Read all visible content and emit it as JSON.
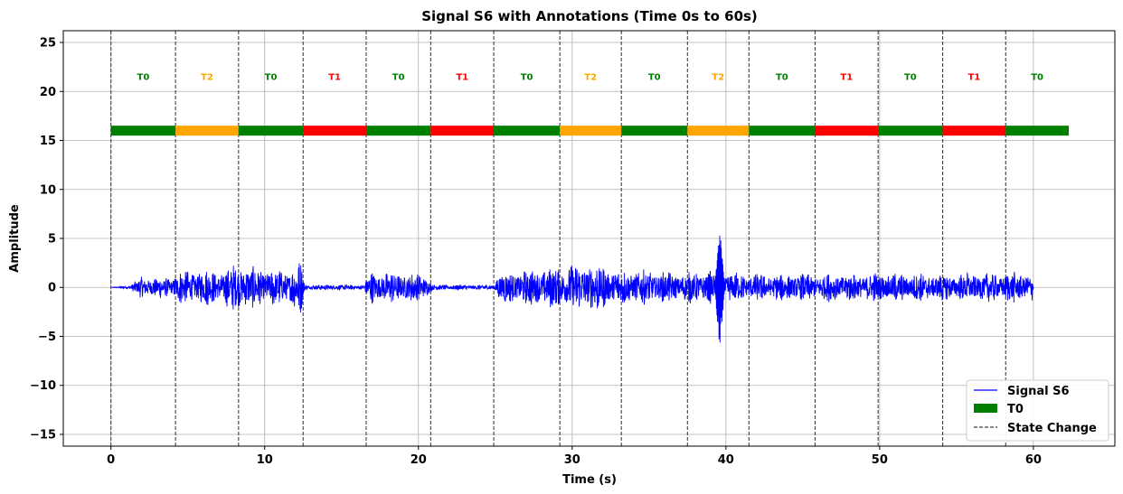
{
  "chart_data": {
    "type": "line",
    "title": "Signal S6 with Annotations (Time 0s to 60s)",
    "xlabel": "Time (s)",
    "ylabel": "Amplitude",
    "xlim": [
      -3.1,
      65.3
    ],
    "ylim": [
      -16.2,
      26.2
    ],
    "xticks": [
      0,
      10,
      20,
      30,
      40,
      50,
      60
    ],
    "yticks": [
      -15,
      -10,
      -5,
      0,
      5,
      10,
      15,
      20,
      25
    ],
    "xtick_labels": [
      "0",
      "10",
      "20",
      "30",
      "40",
      "50",
      "60"
    ],
    "ytick_labels": [
      "−15",
      "−10",
      "−5",
      "0",
      "5",
      "10",
      "15",
      "20",
      "25"
    ],
    "grid": true,
    "series": [
      {
        "name": "Signal S6",
        "color": "#0000ff",
        "x_range": [
          0,
          60
        ],
        "envelope": [
          {
            "t": 0.0,
            "amp": 0.0
          },
          {
            "t": 1.2,
            "amp": 0.2
          },
          {
            "t": 2.0,
            "amp": 1.2
          },
          {
            "t": 4.0,
            "amp": 1.1
          },
          {
            "t": 4.2,
            "amp": 1.8
          },
          {
            "t": 7.5,
            "amp": 2.0
          },
          {
            "t": 8.3,
            "amp": 2.9
          },
          {
            "t": 9.0,
            "amp": 2.2
          },
          {
            "t": 11.5,
            "amp": 2.0
          },
          {
            "t": 12.4,
            "amp": 3.0
          },
          {
            "t": 12.6,
            "amp": 0.3
          },
          {
            "t": 16.5,
            "amp": 0.3
          },
          {
            "t": 16.8,
            "amp": 1.8
          },
          {
            "t": 20.5,
            "amp": 1.5
          },
          {
            "t": 20.9,
            "amp": 0.3
          },
          {
            "t": 24.9,
            "amp": 0.3
          },
          {
            "t": 25.2,
            "amp": 1.6
          },
          {
            "t": 29.0,
            "amp": 2.3
          },
          {
            "t": 31.0,
            "amp": 2.8
          },
          {
            "t": 33.2,
            "amp": 2.0
          },
          {
            "t": 37.0,
            "amp": 1.6
          },
          {
            "t": 39.0,
            "amp": 1.8
          },
          {
            "t": 41.5,
            "amp": 1.5
          },
          {
            "t": 45.8,
            "amp": 1.5
          },
          {
            "t": 50.0,
            "amp": 1.6
          },
          {
            "t": 54.0,
            "amp": 1.5
          },
          {
            "t": 60.0,
            "amp": 1.7
          }
        ],
        "spike": {
          "t": 39.6,
          "max": 6.0,
          "min": -6.2
        },
        "y_min_label": -6.2,
        "y_max_label": 6.0
      }
    ],
    "segments": [
      {
        "label": "T0",
        "start": 0.0,
        "end": 4.2,
        "color": "#008000"
      },
      {
        "label": "T2",
        "start": 4.2,
        "end": 8.3,
        "color": "#ffa500"
      },
      {
        "label": "T0",
        "start": 8.3,
        "end": 12.5,
        "color": "#008000"
      },
      {
        "label": "T1",
        "start": 12.5,
        "end": 16.6,
        "color": "#ff0000"
      },
      {
        "label": "T0",
        "start": 16.6,
        "end": 20.8,
        "color": "#008000"
      },
      {
        "label": "T1",
        "start": 20.8,
        "end": 24.9,
        "color": "#ff0000"
      },
      {
        "label": "T0",
        "start": 24.9,
        "end": 29.2,
        "color": "#008000"
      },
      {
        "label": "T2",
        "start": 29.2,
        "end": 33.2,
        "color": "#ffa500"
      },
      {
        "label": "T0",
        "start": 33.2,
        "end": 37.5,
        "color": "#008000"
      },
      {
        "label": "T2",
        "start": 37.5,
        "end": 41.5,
        "color": "#ffa500"
      },
      {
        "label": "T0",
        "start": 41.5,
        "end": 45.8,
        "color": "#008000"
      },
      {
        "label": "T1",
        "start": 45.8,
        "end": 49.9,
        "color": "#ff0000"
      },
      {
        "label": "T0",
        "start": 49.9,
        "end": 54.1,
        "color": "#008000"
      },
      {
        "label": "T1",
        "start": 54.1,
        "end": 58.2,
        "color": "#ff0000"
      },
      {
        "label": "T0",
        "start": 58.2,
        "end": 62.3,
        "color": "#008000"
      }
    ],
    "segment_bar_y": 16.0,
    "segment_label_y": 21.5,
    "state_changes": [
      0.0,
      4.2,
      8.3,
      12.5,
      16.6,
      20.8,
      24.9,
      29.2,
      33.2,
      37.5,
      41.5,
      45.8,
      49.9,
      54.1,
      58.2
    ],
    "legend": {
      "position": "lower-right",
      "entries": [
        {
          "label": "Signal S6",
          "kind": "line",
          "color": "#0000ff"
        },
        {
          "label": "T0",
          "kind": "bar",
          "color": "#008000"
        },
        {
          "label": "State Change",
          "kind": "dashed",
          "color": "#404040"
        }
      ]
    }
  }
}
